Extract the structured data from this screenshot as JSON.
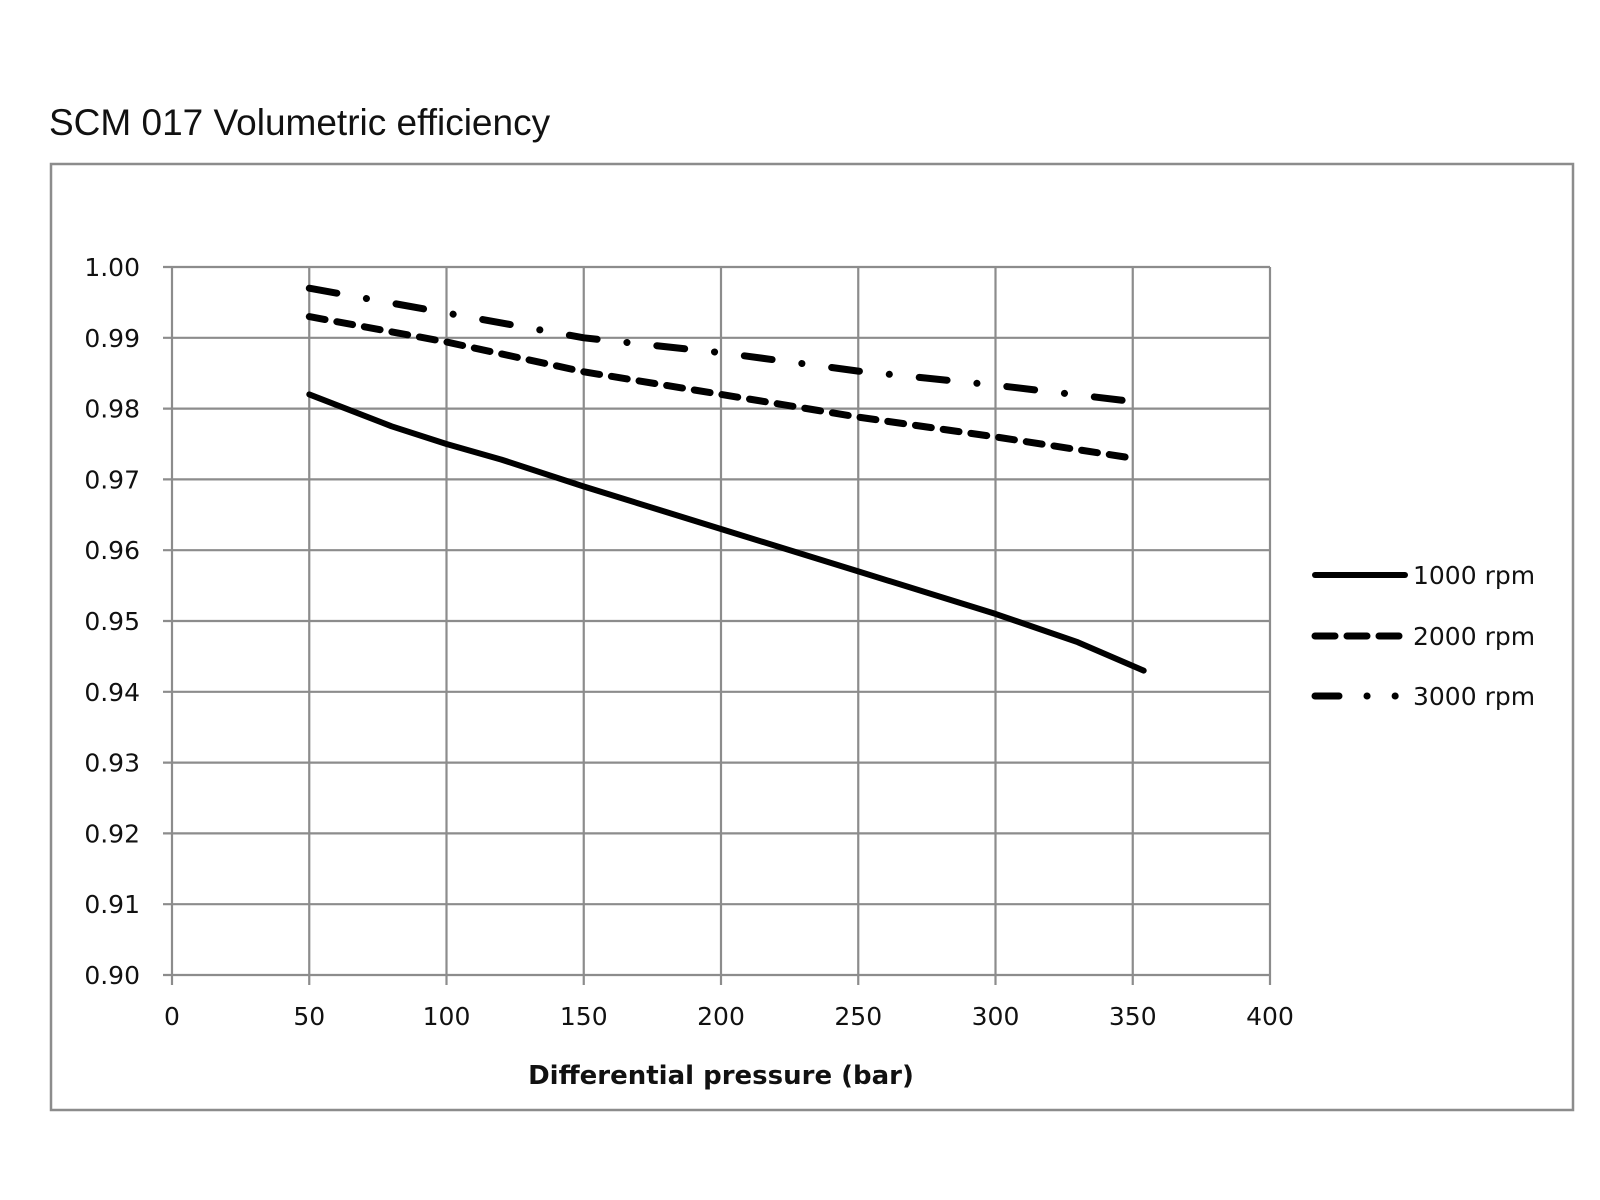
{
  "chart_data": {
    "type": "line",
    "title": "SCM 017 Volumetric efficiency",
    "xlabel": "Differential pressure (bar)",
    "ylabel": "",
    "xlim": [
      0,
      400
    ],
    "ylim": [
      0.9,
      1.0
    ],
    "x_ticks": [
      "0",
      "50",
      "100",
      "150",
      "200",
      "250",
      "300",
      "350",
      "400"
    ],
    "y_ticks": [
      "1.00",
      "0.99",
      "0.98",
      "0.97",
      "0.96",
      "0.95",
      "0.94",
      "0.93",
      "0.92",
      "0.91",
      "0.90"
    ],
    "grid": true,
    "legend_position": "right",
    "series": [
      {
        "name": "1000 rpm",
        "style": "solid",
        "color": "#000000",
        "x": [
          50,
          80,
          100,
          120,
          150,
          200,
          250,
          300,
          330,
          354
        ],
        "y": [
          0.982,
          0.9775,
          0.975,
          0.9728,
          0.969,
          0.963,
          0.957,
          0.951,
          0.947,
          0.943
        ]
      },
      {
        "name": "2000 rpm",
        "style": "dashed",
        "color": "#000000",
        "x": [
          50,
          100,
          150,
          200,
          250,
          300,
          350
        ],
        "y": [
          0.993,
          0.9894,
          0.9852,
          0.982,
          0.9788,
          0.976,
          0.973
        ]
      },
      {
        "name": "3000 rpm",
        "style": "dash-dot",
        "color": "#000000",
        "x": [
          50,
          100,
          150,
          200,
          250,
          300,
          350
        ],
        "y": [
          0.997,
          0.9935,
          0.99,
          0.9879,
          0.9853,
          0.9833,
          0.981
        ]
      }
    ]
  },
  "colors": {
    "grid": "#8c8c8c",
    "frame": "#8c8c8c",
    "line": "#000000",
    "text": "#111111"
  }
}
